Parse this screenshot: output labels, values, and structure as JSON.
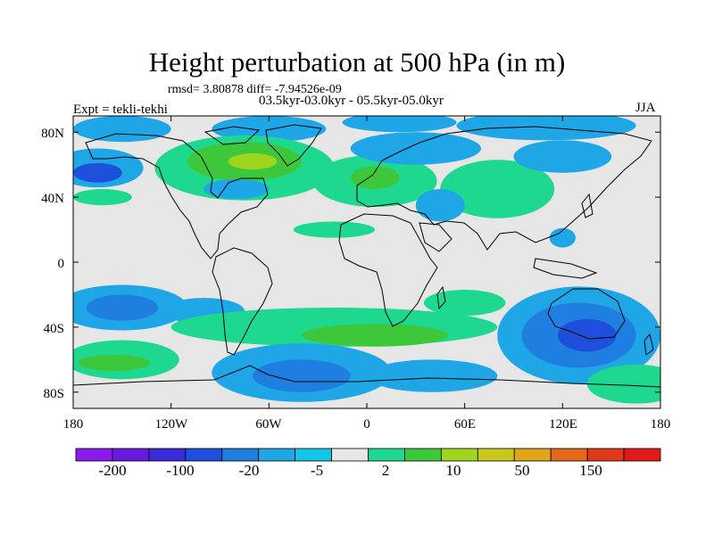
{
  "chart_data": {
    "type": "heatmap",
    "title": "Height perturbation at 500 hPa (in m)",
    "stats_line": "rmsd= 3.80878 diff= -7.94526e-09",
    "period_label": "03.5kyr-03.0kyr - 05.5kyr-05.0kyr",
    "experiment_label": "Expt = tekli-tekhi",
    "season_label": "JJA",
    "x_ticks": [
      "180",
      "120W",
      "60W",
      "0",
      "60E",
      "120E",
      "180"
    ],
    "y_ticks": [
      "80N",
      "40N",
      "0",
      "40S",
      "80S"
    ],
    "xlim": [
      -180,
      180
    ],
    "ylim": [
      -90,
      90
    ],
    "colorbar": {
      "levels": [
        -200,
        -100,
        -50,
        -20,
        -10,
        -5,
        -2,
        2,
        5,
        10,
        20,
        50,
        100,
        150,
        200
      ],
      "tick_labels": [
        "-200",
        "-100",
        "-20",
        "-5",
        "2",
        "10",
        "50",
        "150"
      ],
      "colors": [
        "#8a1aed",
        "#6a1ae0",
        "#3a2ad8",
        "#1e4fdc",
        "#1f7fe0",
        "#1fa6e6",
        "#12c6e8",
        "#e6e6e6",
        "#1fd88f",
        "#3cc83a",
        "#9ed51e",
        "#c9c81a",
        "#e0a51a",
        "#e06a1a",
        "#e0381a",
        "#e01a1a"
      ]
    },
    "anomaly_regions": [
      {
        "lon": -150,
        "lat": 82,
        "rlon": 30,
        "rlat": 8,
        "level": "-5"
      },
      {
        "lon": -60,
        "lat": 82,
        "rlon": 35,
        "rlat": 8,
        "level": "-5"
      },
      {
        "lon": 20,
        "lat": 86,
        "rlon": 35,
        "rlat": 6,
        "level": "-5"
      },
      {
        "lon": 110,
        "lat": 84,
        "rlon": 55,
        "rlat": 9,
        "level": "-5"
      },
      {
        "lon": -165,
        "lat": 58,
        "rlon": 28,
        "rlat": 12,
        "level": "-5"
      },
      {
        "lon": -165,
        "lat": 55,
        "rlon": 15,
        "rlat": 6,
        "level": "-20"
      },
      {
        "lon": -162,
        "lat": 40,
        "rlon": 18,
        "rlat": 5,
        "level": "5"
      },
      {
        "lon": -75,
        "lat": 58,
        "rlon": 55,
        "rlat": 20,
        "level": "5"
      },
      {
        "lon": -75,
        "lat": 62,
        "rlon": 35,
        "rlat": 12,
        "level": "10"
      },
      {
        "lon": -70,
        "lat": 62,
        "rlon": 15,
        "rlat": 5,
        "level": "20"
      },
      {
        "lon": -80,
        "lat": 45,
        "rlon": 20,
        "rlat": 6,
        "level": "-5"
      },
      {
        "lon": 5,
        "lat": 50,
        "rlon": 38,
        "rlat": 16,
        "level": "5"
      },
      {
        "lon": 5,
        "lat": 52,
        "rlon": 15,
        "rlat": 7,
        "level": "10"
      },
      {
        "lon": 80,
        "lat": 45,
        "rlon": 35,
        "rlat": 18,
        "level": "5"
      },
      {
        "lon": 30,
        "lat": 70,
        "rlon": 40,
        "rlat": 10,
        "level": "-5"
      },
      {
        "lon": 45,
        "lat": 35,
        "rlon": 15,
        "rlat": 10,
        "level": "-5"
      },
      {
        "lon": 120,
        "lat": 65,
        "rlon": 30,
        "rlat": 10,
        "level": "-5"
      },
      {
        "lon": -20,
        "lat": 20,
        "rlon": 25,
        "rlat": 5,
        "level": "5"
      },
      {
        "lon": 120,
        "lat": 15,
        "rlon": 8,
        "rlat": 6,
        "level": "-5"
      },
      {
        "lon": -150,
        "lat": -28,
        "rlon": 40,
        "rlat": 14,
        "level": "-5"
      },
      {
        "lon": -150,
        "lat": -28,
        "rlon": 22,
        "rlat": 8,
        "level": "-10"
      },
      {
        "lon": -100,
        "lat": -30,
        "rlon": 25,
        "rlat": 8,
        "level": "-5"
      },
      {
        "lon": -20,
        "lat": -40,
        "rlon": 100,
        "rlat": 12,
        "level": "5"
      },
      {
        "lon": 5,
        "lat": -45,
        "rlon": 45,
        "rlat": 7,
        "level": "10"
      },
      {
        "lon": 60,
        "lat": -25,
        "rlon": 25,
        "rlat": 8,
        "level": "5"
      },
      {
        "lon": -150,
        "lat": -60,
        "rlon": 35,
        "rlat": 12,
        "level": "5"
      },
      {
        "lon": -155,
        "lat": -62,
        "rlon": 22,
        "rlat": 5,
        "level": "10"
      },
      {
        "lon": -40,
        "lat": -68,
        "rlon": 55,
        "rlat": 18,
        "level": "-5"
      },
      {
        "lon": -40,
        "lat": -70,
        "rlon": 30,
        "rlat": 10,
        "level": "-10"
      },
      {
        "lon": 40,
        "lat": -70,
        "rlon": 40,
        "rlat": 10,
        "level": "-5"
      },
      {
        "lon": 130,
        "lat": -45,
        "rlon": 50,
        "rlat": 30,
        "level": "-5"
      },
      {
        "lon": 130,
        "lat": -45,
        "rlon": 35,
        "rlat": 20,
        "level": "-10"
      },
      {
        "lon": 135,
        "lat": -45,
        "rlon": 18,
        "rlat": 10,
        "level": "-20"
      },
      {
        "lon": 165,
        "lat": -75,
        "rlon": 30,
        "rlat": 12,
        "level": "5"
      }
    ]
  }
}
